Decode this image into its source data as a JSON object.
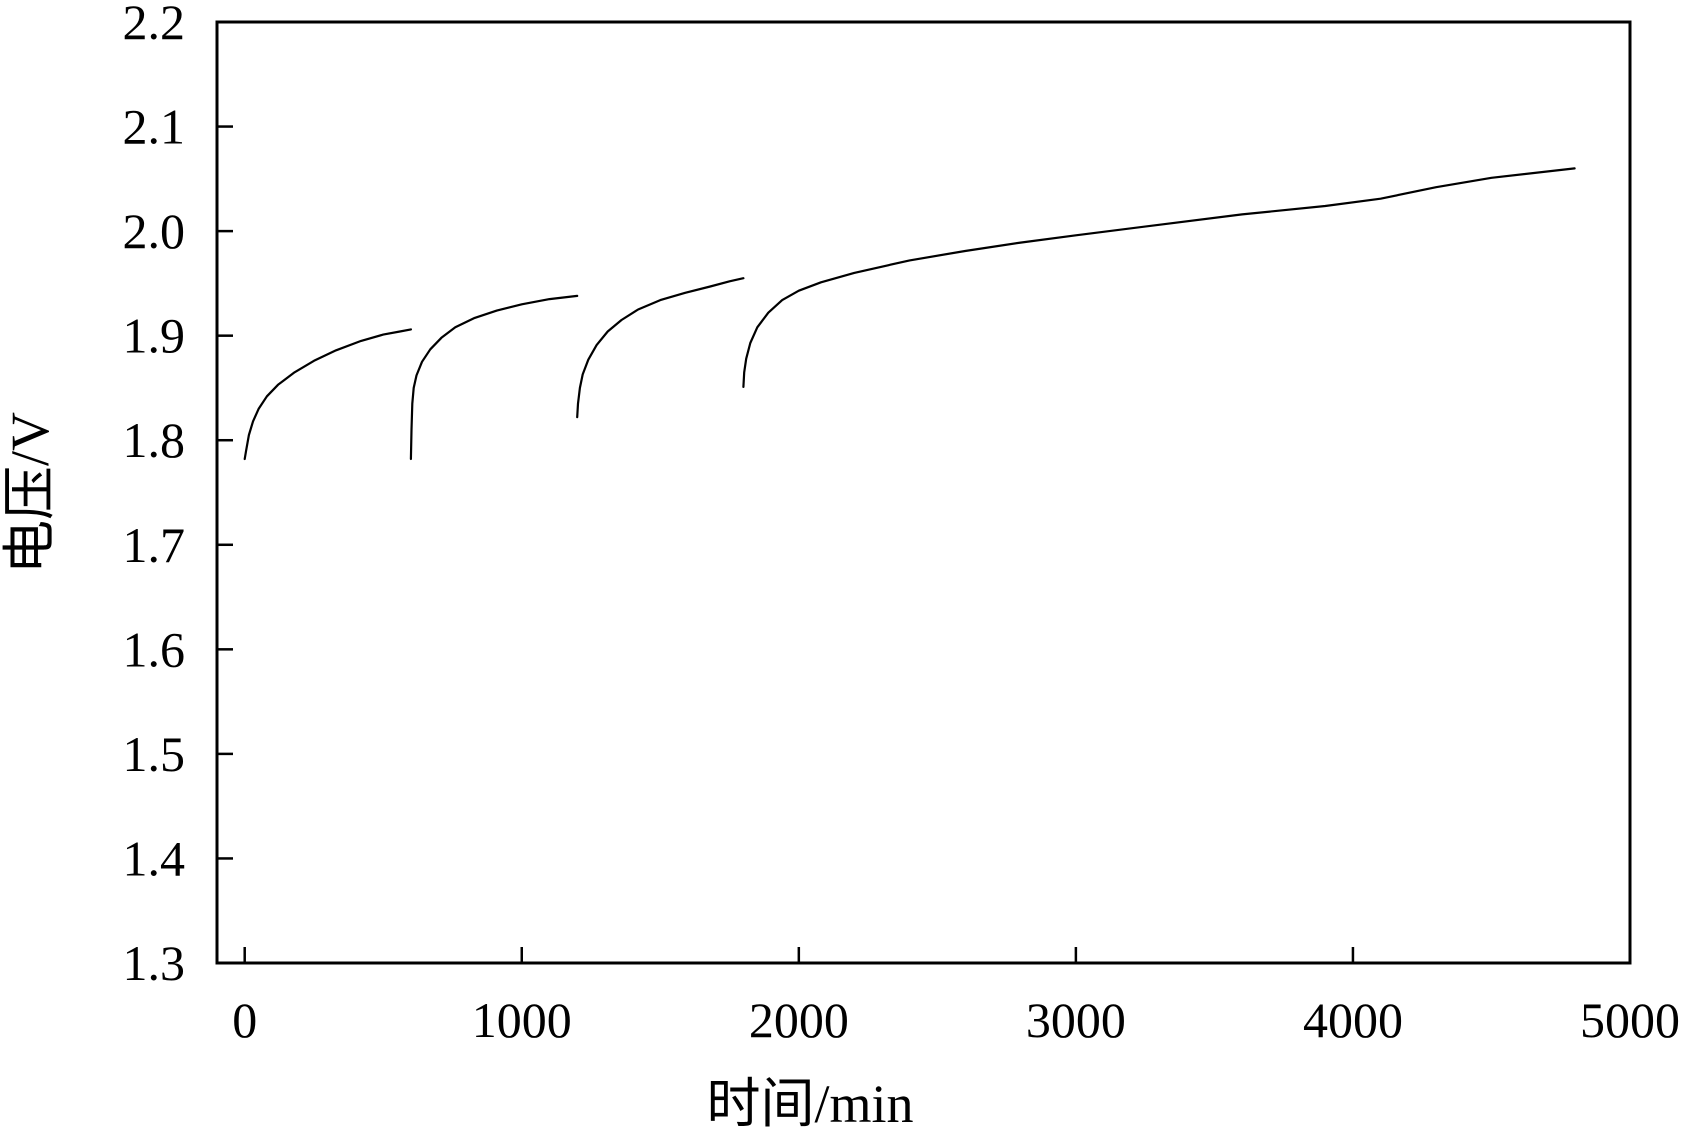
{
  "chart_data": {
    "type": "line",
    "title": "",
    "xlabel": "时间/min",
    "ylabel": "电压/V",
    "xlim": [
      -100,
      5000
    ],
    "ylim": [
      1.3,
      2.2
    ],
    "grid": false,
    "legend": "none",
    "line_color": "#000000",
    "x_ticks": [
      0,
      1000,
      2000,
      3000,
      4000,
      5000
    ],
    "x_tick_labels": [
      "0",
      "1000",
      "2000",
      "3000",
      "4000",
      "5000"
    ],
    "y_ticks": [
      1.3,
      1.4,
      1.5,
      1.6,
      1.7,
      1.8,
      1.9,
      2.0,
      2.1,
      2.2
    ],
    "y_tick_labels": [
      "1.3",
      "1.4",
      "1.5",
      "1.6",
      "1.7",
      "1.8",
      "1.9",
      "2.0",
      "2.1",
      "2.2"
    ],
    "series": [
      {
        "x": [
          0,
          5,
          15,
          30,
          50,
          80,
          120,
          180,
          250,
          330,
          420,
          500,
          560,
          600
        ],
        "y": [
          1.782,
          1.79,
          1.805,
          1.818,
          1.83,
          1.842,
          1.853,
          1.865,
          1.876,
          1.886,
          1.895,
          1.901,
          1.904,
          1.906
        ]
      },
      {
        "x": [
          600,
          602,
          605,
          610,
          620,
          640,
          670,
          710,
          760,
          830,
          910,
          1000,
          1100,
          1200
        ],
        "y": [
          1.782,
          1.81,
          1.835,
          1.85,
          1.862,
          1.875,
          1.887,
          1.898,
          1.908,
          1.917,
          1.924,
          1.93,
          1.935,
          1.938
        ]
      },
      {
        "x": [
          1200,
          1203,
          1210,
          1220,
          1240,
          1270,
          1310,
          1360,
          1420,
          1500,
          1590,
          1680,
          1750,
          1800
        ],
        "y": [
          1.822,
          1.835,
          1.85,
          1.863,
          1.877,
          1.891,
          1.904,
          1.915,
          1.925,
          1.934,
          1.941,
          1.947,
          1.952,
          1.955
        ]
      },
      {
        "x": [
          1800,
          1803,
          1810,
          1825,
          1850,
          1890,
          1940,
          2000,
          2080,
          2200,
          2400,
          2600,
          2800,
          3000,
          3300,
          3600,
          3900,
          4100,
          4300,
          4500,
          4800
        ],
        "y": [
          1.851,
          1.865,
          1.878,
          1.893,
          1.908,
          1.922,
          1.934,
          1.943,
          1.951,
          1.96,
          1.972,
          1.981,
          1.989,
          1.996,
          2.006,
          2.016,
          2.024,
          2.031,
          2.042,
          2.051,
          2.06
        ]
      }
    ]
  }
}
